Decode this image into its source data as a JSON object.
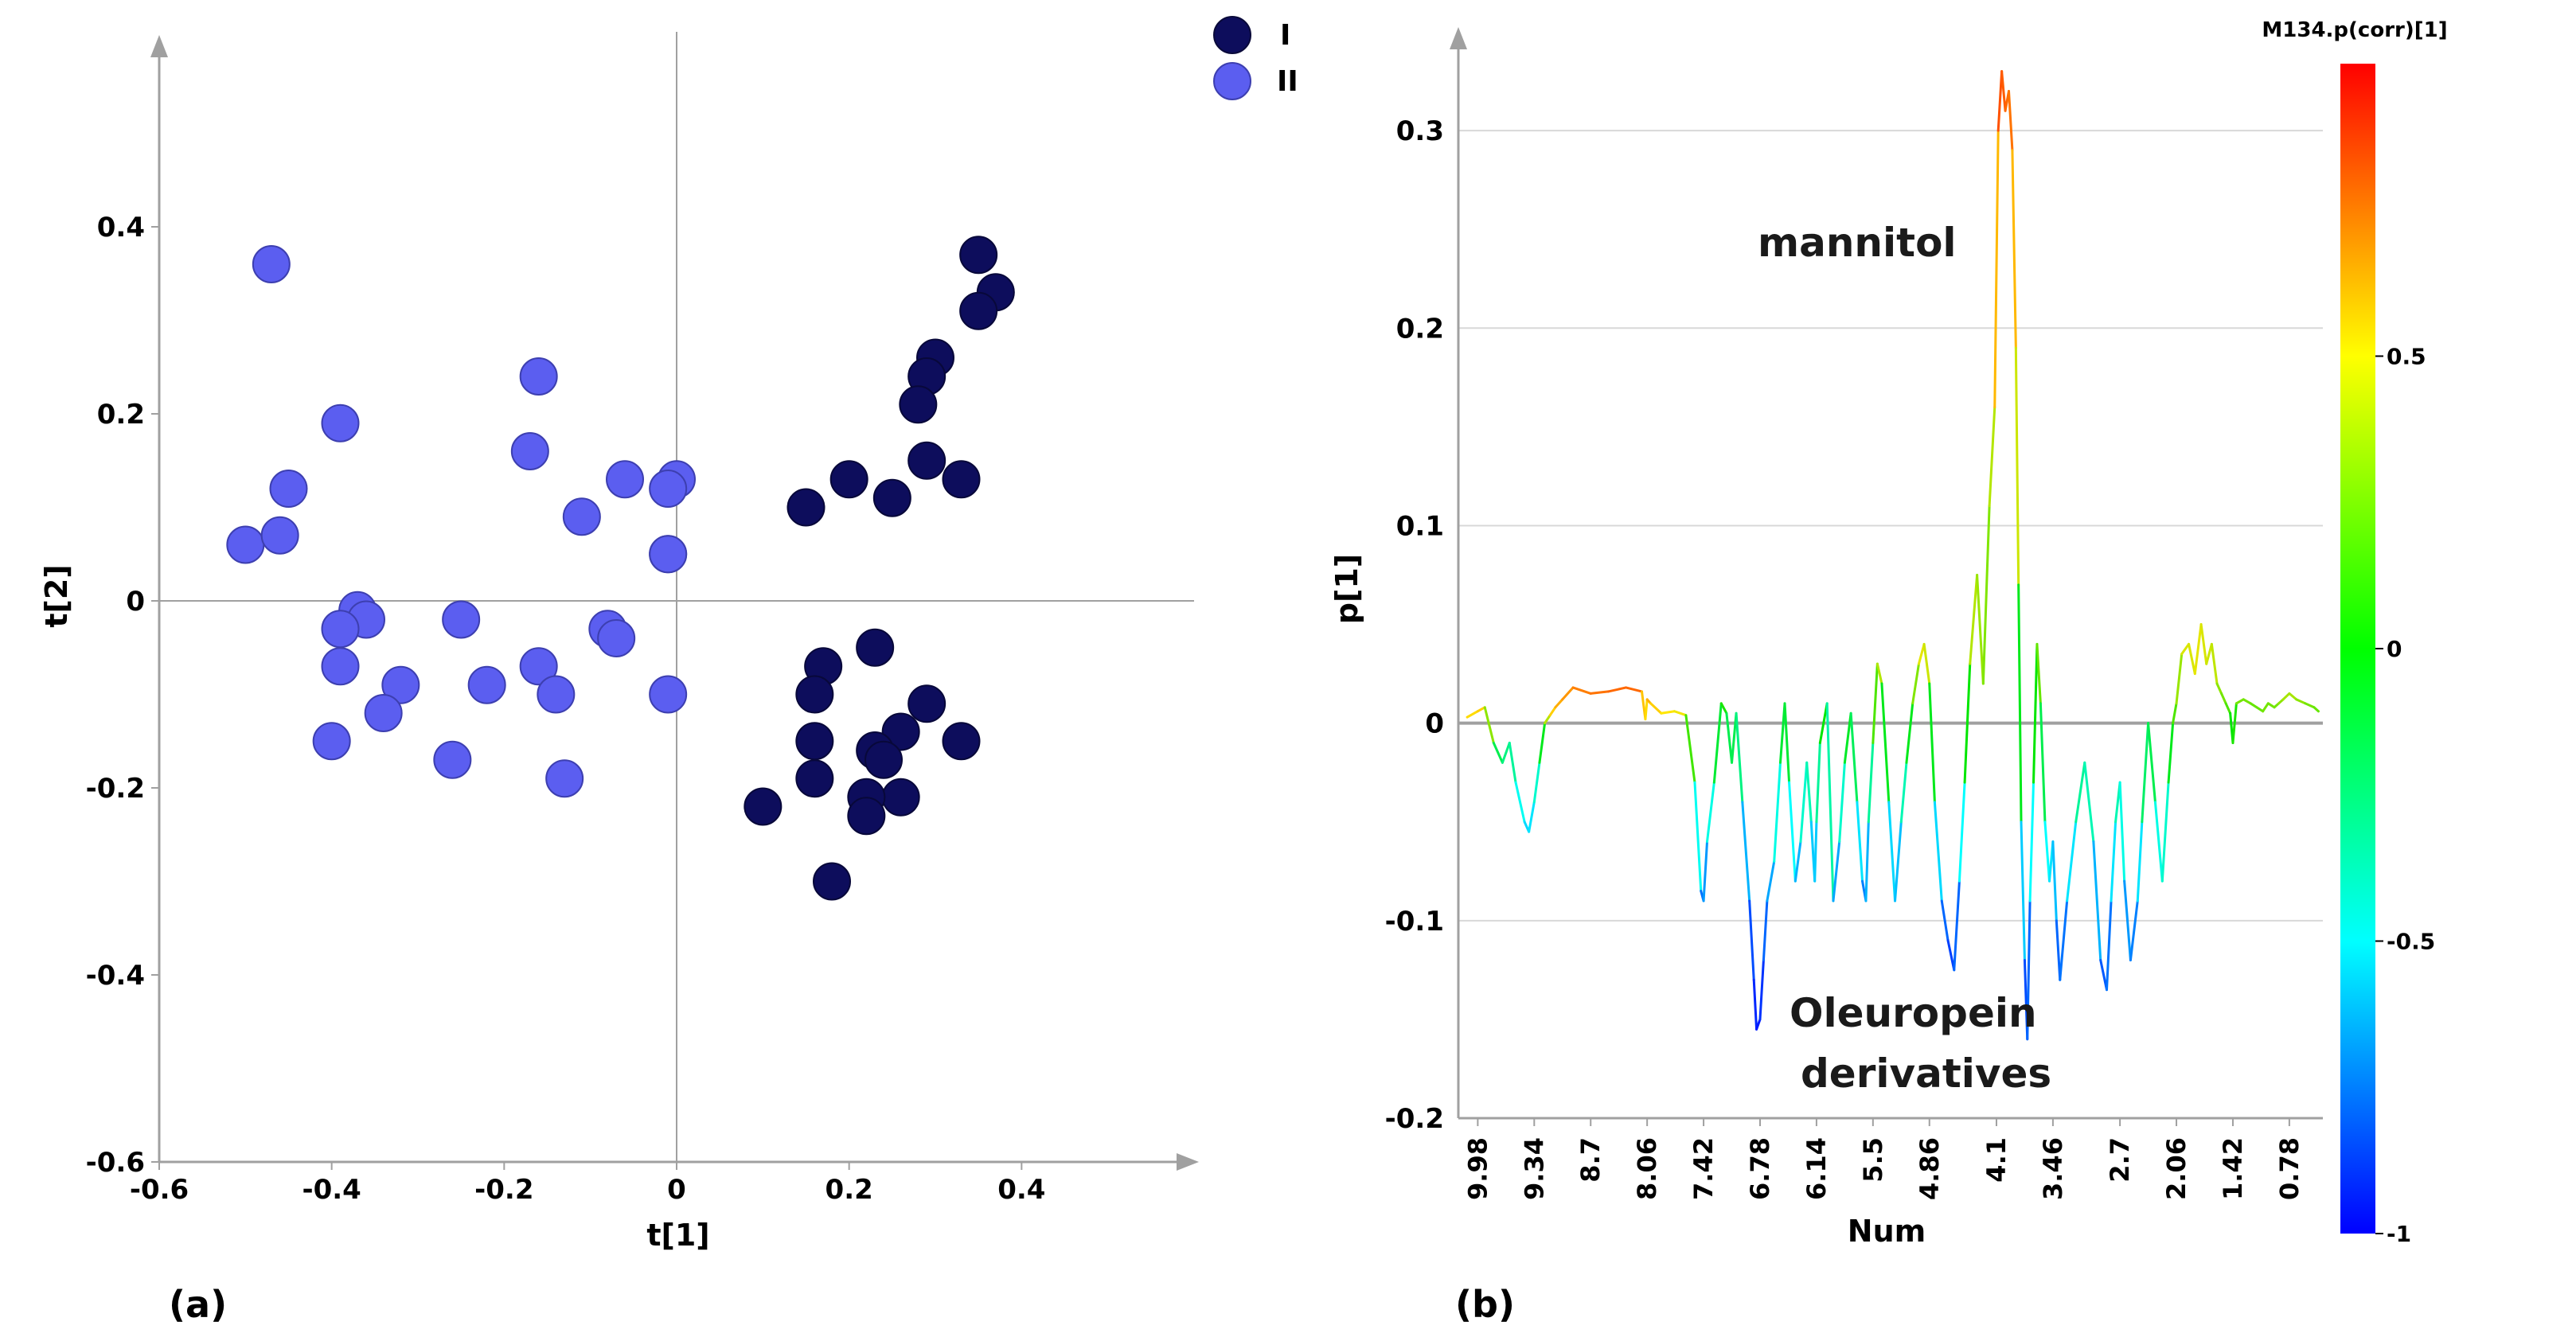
{
  "chart_data": [
    {
      "type": "scatter",
      "panel_label": "(a)",
      "xlabel": "t[1]",
      "ylabel": "t[2]",
      "xlim": [
        -0.6,
        0.6
      ],
      "ylim": [
        -0.6,
        0.6
      ],
      "xticks": [
        -0.6,
        -0.4,
        -0.2,
        0,
        0.2,
        0.4
      ],
      "xtick_labels": [
        "-0.6",
        "-0.4",
        "-0.2",
        "0",
        "0.2",
        "0.4"
      ],
      "yticks": [
        -0.6,
        -0.4,
        -0.2,
        0,
        0.2,
        0.4
      ],
      "ytick_labels": [
        "-0.6",
        "-0.4",
        "-0.2",
        "0",
        "0.2",
        "0.4"
      ],
      "legend_position": "top-right",
      "series": [
        {
          "name": "I",
          "color": "#0d0d5c",
          "points": [
            [
              0.35,
              0.37
            ],
            [
              0.37,
              0.33
            ],
            [
              0.35,
              0.31
            ],
            [
              0.3,
              0.26
            ],
            [
              0.29,
              0.24
            ],
            [
              0.28,
              0.21
            ],
            [
              0.29,
              0.15
            ],
            [
              0.33,
              0.13
            ],
            [
              0.25,
              0.11
            ],
            [
              0.2,
              0.13
            ],
            [
              0.15,
              0.1
            ],
            [
              0.17,
              -0.07
            ],
            [
              0.16,
              -0.1
            ],
            [
              0.23,
              -0.05
            ],
            [
              0.29,
              -0.11
            ],
            [
              0.16,
              -0.15
            ],
            [
              0.26,
              -0.14
            ],
            [
              0.33,
              -0.15
            ],
            [
              0.23,
              -0.16
            ],
            [
              0.24,
              -0.17
            ],
            [
              0.16,
              -0.19
            ],
            [
              0.26,
              -0.21
            ],
            [
              0.22,
              -0.21
            ],
            [
              0.1,
              -0.22
            ],
            [
              0.22,
              -0.23
            ],
            [
              0.18,
              -0.3
            ]
          ]
        },
        {
          "name": "II",
          "color": "#5b5ef0",
          "points": [
            [
              -0.47,
              0.36
            ],
            [
              -0.39,
              0.19
            ],
            [
              -0.45,
              0.12
            ],
            [
              -0.5,
              0.06
            ],
            [
              -0.46,
              0.07
            ],
            [
              -0.16,
              0.24
            ],
            [
              -0.17,
              0.16
            ],
            [
              -0.06,
              0.13
            ],
            [
              0.0,
              0.13
            ],
            [
              -0.01,
              0.12
            ],
            [
              -0.11,
              0.09
            ],
            [
              -0.01,
              0.05
            ],
            [
              -0.01,
              0.05
            ],
            [
              -0.37,
              -0.01
            ],
            [
              -0.36,
              -0.02
            ],
            [
              -0.39,
              -0.03
            ],
            [
              -0.25,
              -0.02
            ],
            [
              -0.08,
              -0.03
            ],
            [
              -0.07,
              -0.04
            ],
            [
              -0.39,
              -0.07
            ],
            [
              -0.16,
              -0.07
            ],
            [
              -0.32,
              -0.09
            ],
            [
              -0.22,
              -0.09
            ],
            [
              -0.14,
              -0.1
            ],
            [
              -0.01,
              -0.1
            ],
            [
              -0.34,
              -0.12
            ],
            [
              -0.4,
              -0.15
            ],
            [
              -0.26,
              -0.17
            ],
            [
              -0.13,
              -0.19
            ]
          ]
        }
      ]
    },
    {
      "type": "line",
      "panel_label": "(b)",
      "xlabel": "Num",
      "ylabel": "p[1]",
      "xlim": [
        10.2,
        0.4
      ],
      "ylim": [
        -0.2,
        0.35
      ],
      "yticks": [
        -0.2,
        -0.1,
        0,
        0.1,
        0.2,
        0.3
      ],
      "ytick_labels": [
        "-0.2",
        "-0.1",
        "0",
        "0.1",
        "0.2",
        "0.3"
      ],
      "xticks": [
        9.98,
        9.34,
        8.7,
        8.06,
        7.42,
        6.78,
        6.14,
        5.5,
        4.86,
        4.1,
        3.46,
        2.7,
        2.06,
        1.42,
        0.78
      ],
      "xtick_labels": [
        "9.98",
        "9.34",
        "8.7",
        "8.06",
        "7.42",
        "6.78",
        "6.14",
        "5.5",
        "4.86",
        "4.1",
        "3.46",
        "2.7",
        "2.06",
        "1.42",
        "0.78"
      ],
      "colorbar": {
        "title": "M134.p(corr)[1]",
        "range": [
          -1,
          1
        ],
        "ticks": [
          -1,
          -0.5,
          0,
          0.5
        ],
        "tick_labels": [
          "-1",
          "-0.5",
          "0",
          "0.5"
        ]
      },
      "annotations": [
        {
          "text": "mannitol",
          "x": 5.3,
          "y": 0.28
        },
        {
          "text": "Oleuropein",
          "x": 4.25,
          "y": -0.142
        },
        {
          "text": "derivatives",
          "x": 4.25,
          "y": -0.175
        }
      ],
      "series": [
        {
          "name": "p[1]",
          "x": [
            10.1,
            9.98,
            9.9,
            9.8,
            9.7,
            9.62,
            9.55,
            9.45,
            9.4,
            9.34,
            9.28,
            9.22,
            9.16,
            9.1,
            9.02,
            8.9,
            8.7,
            8.5,
            8.3,
            8.12,
            8.08,
            8.06,
            8.02,
            7.9,
            7.75,
            7.62,
            7.52,
            7.45,
            7.42,
            7.38,
            7.3,
            7.22,
            7.16,
            7.1,
            7.05,
            6.98,
            6.9,
            6.85,
            6.82,
            6.78,
            6.74,
            6.7,
            6.62,
            6.55,
            6.5,
            6.45,
            6.38,
            6.32,
            6.25,
            6.2,
            6.16,
            6.14,
            6.1,
            6.02,
            5.95,
            5.88,
            5.82,
            5.75,
            5.68,
            5.62,
            5.58,
            5.55,
            5.5,
            5.45,
            5.4,
            5.32,
            5.25,
            5.18,
            5.12,
            5.05,
            4.98,
            4.92,
            4.86,
            4.8,
            4.72,
            4.65,
            4.58,
            4.52,
            4.46,
            4.4,
            4.32,
            4.25,
            4.18,
            4.12,
            4.08,
            4.04,
            4.0,
            3.96,
            3.92,
            3.88,
            3.85,
            3.82,
            3.78,
            3.75,
            3.72,
            3.68,
            3.64,
            3.6,
            3.55,
            3.5,
            3.46,
            3.42,
            3.38,
            3.3,
            3.2,
            3.1,
            3.0,
            2.92,
            2.85,
            2.8,
            2.75,
            2.7,
            2.65,
            2.58,
            2.5,
            2.45,
            2.38,
            2.3,
            2.22,
            2.15,
            2.1,
            2.06,
            2.0,
            1.92,
            1.85,
            1.78,
            1.72,
            1.66,
            1.6,
            1.55,
            1.5,
            1.45,
            1.42,
            1.38,
            1.3,
            1.22,
            1.15,
            1.08,
            1.02,
            0.95,
            0.9,
            0.85,
            0.78,
            0.7,
            0.6,
            0.5,
            0.45
          ],
          "y": [
            0.003,
            0.006,
            0.008,
            -0.01,
            -0.02,
            -0.01,
            -0.03,
            -0.05,
            -0.055,
            -0.04,
            -0.02,
            0.0,
            0.004,
            0.008,
            0.012,
            0.018,
            0.015,
            0.016,
            0.018,
            0.016,
            0.002,
            0.012,
            0.01,
            0.005,
            0.006,
            0.004,
            -0.03,
            -0.085,
            -0.09,
            -0.06,
            -0.03,
            0.01,
            0.005,
            -0.02,
            0.005,
            -0.04,
            -0.09,
            -0.13,
            -0.155,
            -0.15,
            -0.12,
            -0.09,
            -0.07,
            -0.02,
            0.01,
            -0.03,
            -0.08,
            -0.06,
            -0.02,
            -0.05,
            -0.08,
            -0.05,
            -0.01,
            0.01,
            -0.09,
            -0.06,
            -0.02,
            0.005,
            -0.04,
            -0.08,
            -0.09,
            -0.05,
            -0.01,
            0.03,
            0.02,
            -0.04,
            -0.09,
            -0.05,
            -0.02,
            0.01,
            0.03,
            0.04,
            0.02,
            -0.04,
            -0.09,
            -0.11,
            -0.125,
            -0.08,
            -0.03,
            0.03,
            0.075,
            0.02,
            0.11,
            0.16,
            0.3,
            0.33,
            0.31,
            0.32,
            0.29,
            0.19,
            0.07,
            -0.05,
            -0.12,
            -0.16,
            -0.09,
            -0.03,
            0.04,
            0.01,
            -0.05,
            -0.08,
            -0.06,
            -0.1,
            -0.13,
            -0.09,
            -0.05,
            -0.02,
            -0.06,
            -0.12,
            -0.135,
            -0.09,
            -0.05,
            -0.03,
            -0.08,
            -0.12,
            -0.09,
            -0.05,
            0.0,
            -0.04,
            -0.08,
            -0.03,
            0.0,
            0.01,
            0.035,
            0.04,
            0.025,
            0.05,
            0.03,
            0.04,
            0.02,
            0.015,
            0.01,
            0.005,
            -0.01,
            0.01,
            0.012,
            0.01,
            0.008,
            0.006,
            0.01,
            0.008,
            0.01,
            0.012,
            0.015,
            0.012,
            0.01,
            0.008,
            0.006
          ],
          "corr": [
            0.5,
            0.55,
            0.55,
            0.0,
            -0.3,
            -0.2,
            -0.4,
            -0.55,
            -0.6,
            -0.5,
            -0.3,
            0.2,
            0.5,
            0.6,
            0.65,
            0.7,
            0.75,
            0.75,
            0.8,
            0.75,
            0.4,
            0.65,
            0.6,
            0.5,
            0.5,
            0.45,
            -0.2,
            -0.75,
            -0.8,
            -0.6,
            -0.3,
            0.1,
            0.0,
            -0.3,
            0.0,
            -0.5,
            -0.8,
            -0.9,
            -0.95,
            -0.95,
            -0.85,
            -0.75,
            -0.6,
            -0.3,
            0.1,
            -0.3,
            -0.7,
            -0.6,
            -0.2,
            -0.5,
            -0.7,
            -0.5,
            -0.1,
            0.1,
            -0.75,
            -0.6,
            -0.2,
            0.05,
            -0.4,
            -0.7,
            -0.8,
            -0.5,
            -0.1,
            0.4,
            0.3,
            -0.4,
            -0.75,
            -0.5,
            -0.2,
            0.1,
            0.4,
            0.5,
            0.3,
            -0.4,
            -0.75,
            -0.85,
            -0.9,
            -0.7,
            -0.3,
            0.3,
            0.4,
            0.2,
            0.3,
            0.4,
            0.8,
            0.85,
            0.75,
            0.8,
            0.7,
            0.5,
            0.3,
            -0.4,
            -0.8,
            -0.9,
            -0.7,
            -0.3,
            0.3,
            0.1,
            -0.4,
            -0.6,
            -0.5,
            -0.75,
            -0.85,
            -0.7,
            -0.4,
            -0.2,
            -0.5,
            -0.8,
            -0.85,
            -0.7,
            -0.4,
            -0.3,
            -0.6,
            -0.8,
            -0.7,
            -0.4,
            0.0,
            -0.3,
            -0.6,
            -0.2,
            0.1,
            0.2,
            0.4,
            0.45,
            0.4,
            0.5,
            0.35,
            0.45,
            0.3,
            0.25,
            0.2,
            0.1,
            -0.1,
            0.2,
            0.25,
            0.2,
            0.2,
            0.2,
            0.25,
            0.2,
            0.25,
            0.3,
            0.35,
            0.3,
            0.25,
            0.2,
            0.2
          ]
        }
      ]
    }
  ]
}
